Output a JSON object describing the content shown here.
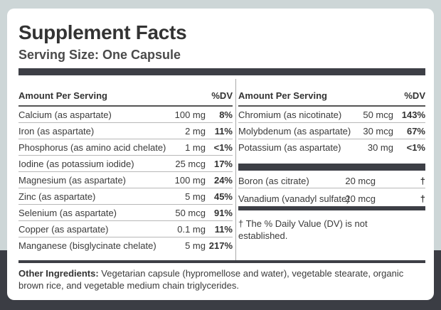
{
  "title": "Supplement Facts",
  "serving_size": "Serving Size: One Capsule",
  "left_column": {
    "header_name": "Amount Per Serving",
    "header_dv": "%DV",
    "rows": [
      {
        "name": "Calcium (as aspartate)",
        "amount": "100 mg",
        "dv": "8%"
      },
      {
        "name": "Iron (as aspartate)",
        "amount": "2 mg",
        "dv": "11%"
      },
      {
        "name": "Phosphorus (as amino acid chelate)",
        "amount": "1 mg",
        "dv": "<1%"
      },
      {
        "name": "Iodine (as potassium iodide)",
        "amount": "25 mcg",
        "dv": "17%"
      },
      {
        "name": "Magnesium (as aspartate)",
        "amount": "100 mg",
        "dv": "24%"
      },
      {
        "name": "Zinc (as aspartate)",
        "amount": "5 mg",
        "dv": "45%"
      },
      {
        "name": "Selenium (as aspartate)",
        "amount": "50 mcg",
        "dv": "91%"
      },
      {
        "name": "Copper (as aspartate)",
        "amount": "0.1 mg",
        "dv": "11%"
      },
      {
        "name": "Manganese (bisglycinate chelate)",
        "amount": "5 mg",
        "dv": "217%"
      }
    ]
  },
  "right_column": {
    "header_name": "Amount Per Serving",
    "header_dv": "%DV",
    "rows": [
      {
        "name": "Chromium (as nicotinate)",
        "amount": "50 mcg",
        "dv": "143%"
      },
      {
        "name": "Molybdenum (as aspartate)",
        "amount": "30 mcg",
        "dv": "67%"
      },
      {
        "name": "Potassium (as aspartate)",
        "amount": "30 mg",
        "dv": "<1%"
      }
    ],
    "rows_no_dv": [
      {
        "name": "Boron (as citrate)",
        "amount": "20 mcg",
        "dv": "†"
      },
      {
        "name": "Vanadium (vanadyl sulfate)",
        "amount": "20 mcg",
        "dv": "†"
      }
    ],
    "footnote": "† The % Daily Value (DV) is not established."
  },
  "other_ingredients": {
    "label": "Other Ingredients:",
    "text": " Vegetarian capsule (hypromellose and water), vegetable stearate, organic brown rice, and vegetable medium chain triglycerides."
  }
}
